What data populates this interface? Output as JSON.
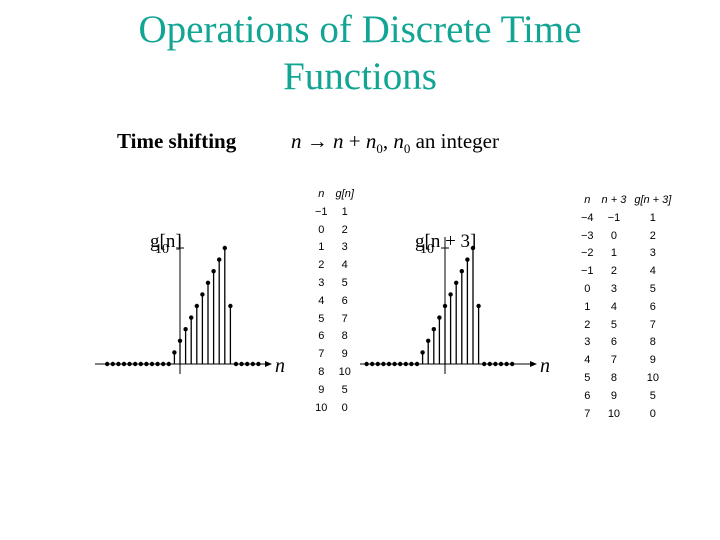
{
  "slide": {
    "title_line1": "Operations of Discrete Time",
    "title_line2": "Functions"
  },
  "section": {
    "heading": "Time shifting",
    "formula": {
      "lhs": "n",
      "arrow": "→",
      "rhs_n": "n",
      "plus": "+",
      "rhs_n0": "n",
      "sub0": "0",
      "comma": ",",
      "n0": "n",
      "sub0b": "0",
      "text": "an integer"
    }
  },
  "plot_left": {
    "label": "g[n]",
    "tick": "10",
    "axis_label": "n"
  },
  "plot_right": {
    "label": "g[n + 3]",
    "tick": "10",
    "axis_label": "n"
  },
  "table_left": {
    "headers": [
      "n",
      "g[n]"
    ],
    "rows": [
      [
        "−1",
        "1"
      ],
      [
        "0",
        "2"
      ],
      [
        "1",
        "3"
      ],
      [
        "2",
        "4"
      ],
      [
        "3",
        "5"
      ],
      [
        "4",
        "6"
      ],
      [
        "5",
        "7"
      ],
      [
        "6",
        "8"
      ],
      [
        "7",
        "9"
      ],
      [
        "8",
        "10"
      ],
      [
        "9",
        "5"
      ],
      [
        "10",
        "0"
      ]
    ]
  },
  "table_right": {
    "headers": [
      "n",
      "n + 3",
      "g[n + 3]"
    ],
    "rows": [
      [
        "−4",
        "−1",
        "1"
      ],
      [
        "−3",
        "0",
        "2"
      ],
      [
        "−2",
        "1",
        "3"
      ],
      [
        "−1",
        "2",
        "4"
      ],
      [
        "0",
        "3",
        "5"
      ],
      [
        "1",
        "4",
        "6"
      ],
      [
        "2",
        "5",
        "7"
      ],
      [
        "3",
        "6",
        "8"
      ],
      [
        "4",
        "7",
        "9"
      ],
      [
        "5",
        "8",
        "10"
      ],
      [
        "6",
        "9",
        "5"
      ],
      [
        "7",
        "10",
        "0"
      ]
    ]
  },
  "chart_data": [
    {
      "type": "scatter",
      "title": "g[n]",
      "xlabel": "n",
      "ylabel": "",
      "x": [
        -1,
        0,
        1,
        2,
        3,
        4,
        5,
        6,
        7,
        8,
        9,
        10
      ],
      "y": [
        1,
        2,
        3,
        4,
        5,
        6,
        7,
        8,
        9,
        10,
        5,
        0
      ],
      "ylim": [
        0,
        10
      ]
    },
    {
      "type": "scatter",
      "title": "g[n + 3]",
      "xlabel": "n",
      "ylabel": "",
      "x": [
        -4,
        -3,
        -2,
        -1,
        0,
        1,
        2,
        3,
        4,
        5,
        6,
        7
      ],
      "y": [
        1,
        2,
        3,
        4,
        5,
        6,
        7,
        8,
        9,
        10,
        5,
        0
      ],
      "ylim": [
        0,
        10
      ]
    }
  ]
}
